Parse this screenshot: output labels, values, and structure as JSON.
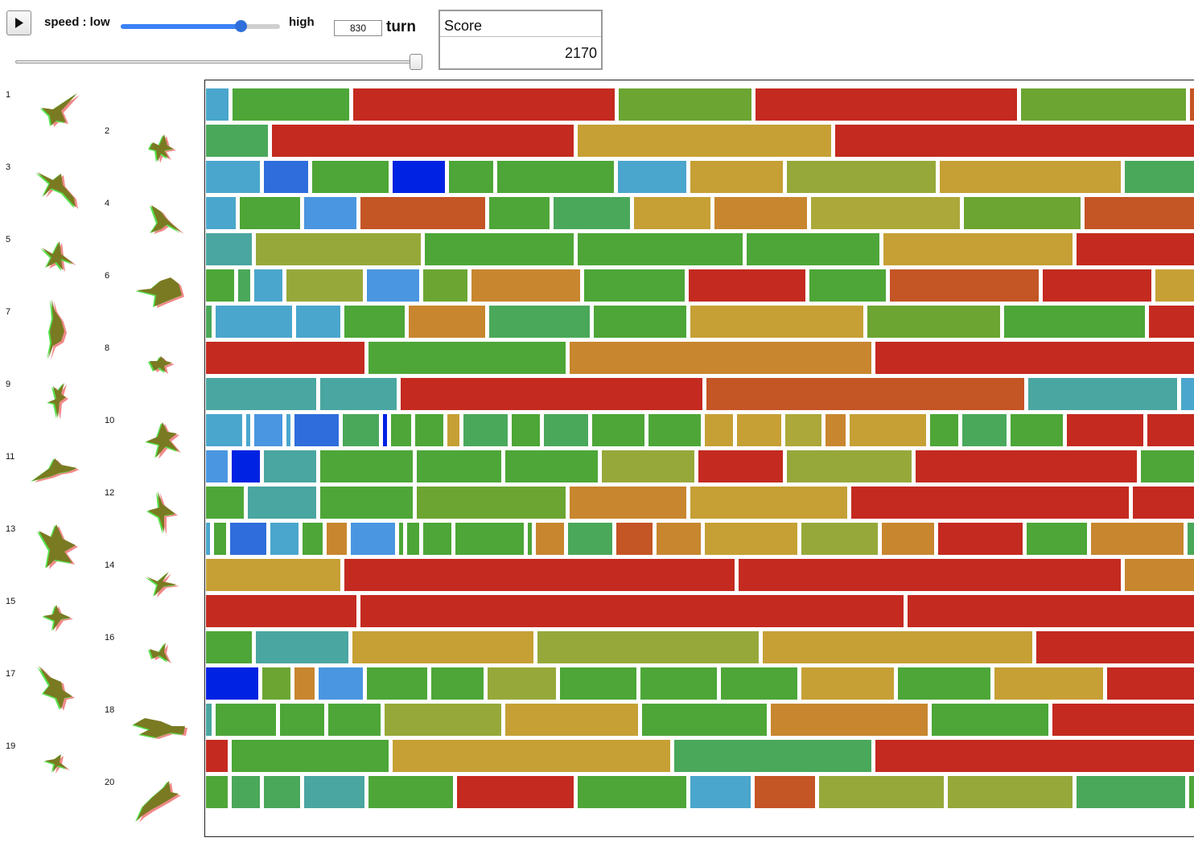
{
  "controls": {
    "speed_label": "speed : low",
    "speed_high_label": "high",
    "speed_level": 0.75,
    "turn_value": "830",
    "turn_label": "turn",
    "seek_level": 1.0
  },
  "score": {
    "header": "Score",
    "value": "2170"
  },
  "pieces": {
    "labels": [
      "1",
      "2",
      "3",
      "4",
      "5",
      "6",
      "7",
      "8",
      "9",
      "10",
      "11",
      "12",
      "13",
      "14",
      "15",
      "16",
      "17",
      "18",
      "19",
      "20"
    ]
  },
  "palette": {
    "R": "#c42a20",
    "O": "#c45525",
    "T": "#c8862f",
    "G": "#c6a035",
    "Y": "#aca83a",
    "L": "#97a83a",
    "K": "#6ca532",
    "g": "#4da637",
    "M": "#4aa85a",
    "Q": "#4aa6a0",
    "S": "#4aa6cc",
    "B": "#4a96e0",
    "D": "#2f6ddc",
    "N": "#0022e2",
    "P": "#cfa532"
  },
  "board": {
    "rows": [
      [
        [
          "S",
          28
        ],
        [
          "g",
          145
        ],
        [
          "R",
          325
        ],
        [
          "K",
          165
        ],
        [
          "R",
          325
        ],
        [
          "K",
          205
        ],
        [
          "O",
          20
        ]
      ],
      [
        [
          "M",
          77
        ],
        [
          "R",
          375
        ],
        [
          "G",
          315
        ],
        [
          "R",
          460
        ]
      ],
      [
        [
          "S",
          67
        ],
        [
          "D",
          55
        ],
        [
          "g",
          95
        ],
        [
          "N",
          65
        ],
        [
          "g",
          55
        ],
        [
          "g",
          145
        ],
        [
          "S",
          85
        ],
        [
          "G",
          115
        ],
        [
          "L",
          185
        ],
        [
          "G",
          225
        ],
        [
          "M",
          95
        ]
      ],
      [
        [
          "S",
          37
        ],
        [
          "g",
          75
        ],
        [
          "B",
          65
        ],
        [
          "O",
          155
        ],
        [
          "g",
          75
        ],
        [
          "M",
          95
        ],
        [
          "G",
          95
        ],
        [
          "T",
          115
        ],
        [
          "Y",
          185
        ],
        [
          "K",
          145
        ],
        [
          "O",
          145
        ]
      ],
      [
        [
          "Q",
          57
        ],
        [
          "L",
          205
        ],
        [
          "g",
          185
        ],
        [
          "g",
          205
        ],
        [
          "g",
          165
        ],
        [
          "G",
          235
        ],
        [
          "R",
          155
        ]
      ],
      [
        [
          "g",
          35
        ],
        [
          "M",
          15
        ],
        [
          "S",
          35
        ],
        [
          "L",
          95
        ],
        [
          "B",
          65
        ],
        [
          "K",
          55
        ],
        [
          "T",
          135
        ],
        [
          "g",
          125
        ],
        [
          "R",
          145
        ],
        [
          "g",
          95
        ],
        [
          "O",
          185
        ],
        [
          "R",
          135
        ],
        [
          "G",
          55
        ]
      ],
      [
        [
          "M",
          7
        ],
        [
          "S",
          95
        ],
        [
          "S",
          55
        ],
        [
          "g",
          75
        ],
        [
          "T",
          95
        ],
        [
          "M",
          125
        ],
        [
          "g",
          115
        ],
        [
          "G",
          215
        ],
        [
          "K",
          165
        ],
        [
          "g",
          175
        ],
        [
          "R",
          65
        ]
      ],
      [
        [
          "R",
          197
        ],
        [
          "g",
          245
        ],
        [
          "T",
          375
        ],
        [
          "R",
          405
        ]
      ],
      [
        [
          "Q",
          137
        ],
        [
          "Q",
          95
        ],
        [
          "R",
          375
        ],
        [
          "O",
          395
        ],
        [
          "Q",
          185
        ],
        [
          "S",
          20
        ]
      ],
      [
        [
          "S",
          45
        ],
        [
          "S",
          5
        ],
        [
          "B",
          35
        ],
        [
          "S",
          5
        ],
        [
          "D",
          55
        ],
        [
          "M",
          45
        ],
        [
          "N",
          5
        ],
        [
          "g",
          25
        ],
        [
          "g",
          35
        ],
        [
          "G",
          15
        ],
        [
          "M",
          55
        ],
        [
          "g",
          35
        ],
        [
          "M",
          55
        ],
        [
          "g",
          65
        ],
        [
          "g",
          65
        ],
        [
          "G",
          35
        ],
        [
          "G",
          55
        ],
        [
          "Y",
          45
        ],
        [
          "T",
          25
        ],
        [
          "G",
          95
        ],
        [
          "g",
          35
        ],
        [
          "M",
          55
        ],
        [
          "g",
          65
        ],
        [
          "R",
          95
        ],
        [
          "R",
          60
        ]
      ],
      [
        [
          "B",
          27
        ],
        [
          "N",
          35
        ],
        [
          "Q",
          65
        ],
        [
          "g",
          115
        ],
        [
          "g",
          105
        ],
        [
          "g",
          115
        ],
        [
          "L",
          115
        ],
        [
          "R",
          105
        ],
        [
          "L",
          155
        ],
        [
          "R",
          275
        ],
        [
          "g",
          70
        ]
      ],
      [
        [
          "g",
          47
        ],
        [
          "Q",
          85
        ],
        [
          "g",
          115
        ],
        [
          "K",
          185
        ],
        [
          "T",
          145
        ],
        [
          "G",
          195
        ],
        [
          "R",
          345
        ],
        [
          "R",
          80
        ]
      ],
      [
        [
          "S",
          5
        ],
        [
          "g",
          15
        ],
        [
          "D",
          45
        ],
        [
          "S",
          35
        ],
        [
          "g",
          25
        ],
        [
          "T",
          25
        ],
        [
          "B",
          55
        ],
        [
          "g",
          5
        ],
        [
          "g",
          15
        ],
        [
          "g",
          35
        ],
        [
          "g",
          85
        ],
        [
          "g",
          5
        ],
        [
          "T",
          35
        ],
        [
          "M",
          55
        ],
        [
          "O",
          45
        ],
        [
          "T",
          55
        ],
        [
          "G",
          115
        ],
        [
          "L",
          95
        ],
        [
          "T",
          65
        ],
        [
          "R",
          105
        ],
        [
          "g",
          75
        ],
        [
          "T",
          115
        ],
        [
          "M",
          30
        ]
      ],
      [
        [
          "G",
          167
        ],
        [
          "R",
          485
        ],
        [
          "R",
          475
        ],
        [
          "T",
          90
        ]
      ],
      [
        [
          "R",
          187
        ],
        [
          "R",
          675
        ],
        [
          "R",
          360
        ]
      ],
      [
        [
          "g",
          57
        ],
        [
          "Q",
          115
        ],
        [
          "G",
          225
        ],
        [
          "L",
          275
        ],
        [
          "G",
          335
        ],
        [
          "R",
          200
        ]
      ],
      [
        [
          "N",
          65
        ],
        [
          "K",
          35
        ],
        [
          "T",
          25
        ],
        [
          "B",
          55
        ],
        [
          "g",
          75
        ],
        [
          "g",
          65
        ],
        [
          "L",
          85
        ],
        [
          "g",
          95
        ],
        [
          "g",
          95
        ],
        [
          "g",
          95
        ],
        [
          "G",
          115
        ],
        [
          "g",
          115
        ],
        [
          "G",
          135
        ],
        [
          "R",
          110
        ]
      ],
      [
        [
          "Q",
          7
        ],
        [
          "g",
          75
        ],
        [
          "g",
          55
        ],
        [
          "g",
          65
        ],
        [
          "L",
          145
        ],
        [
          "G",
          165
        ],
        [
          "g",
          155
        ],
        [
          "T",
          195
        ],
        [
          "g",
          145
        ],
        [
          "R",
          180
        ]
      ],
      [
        [
          "R",
          27
        ],
        [
          "g",
          195
        ],
        [
          "G",
          345
        ],
        [
          "M",
          245
        ],
        [
          "R",
          400
        ]
      ],
      [
        [
          "g",
          27
        ],
        [
          "M",
          35
        ],
        [
          "M",
          45
        ],
        [
          "Q",
          75
        ],
        [
          "g",
          105
        ],
        [
          "R",
          145
        ],
        [
          "g",
          135
        ],
        [
          "S",
          75
        ],
        [
          "O",
          75
        ],
        [
          "L",
          155
        ],
        [
          "L",
          155
        ],
        [
          "M",
          135
        ],
        [
          "g",
          10
        ]
      ]
    ]
  }
}
